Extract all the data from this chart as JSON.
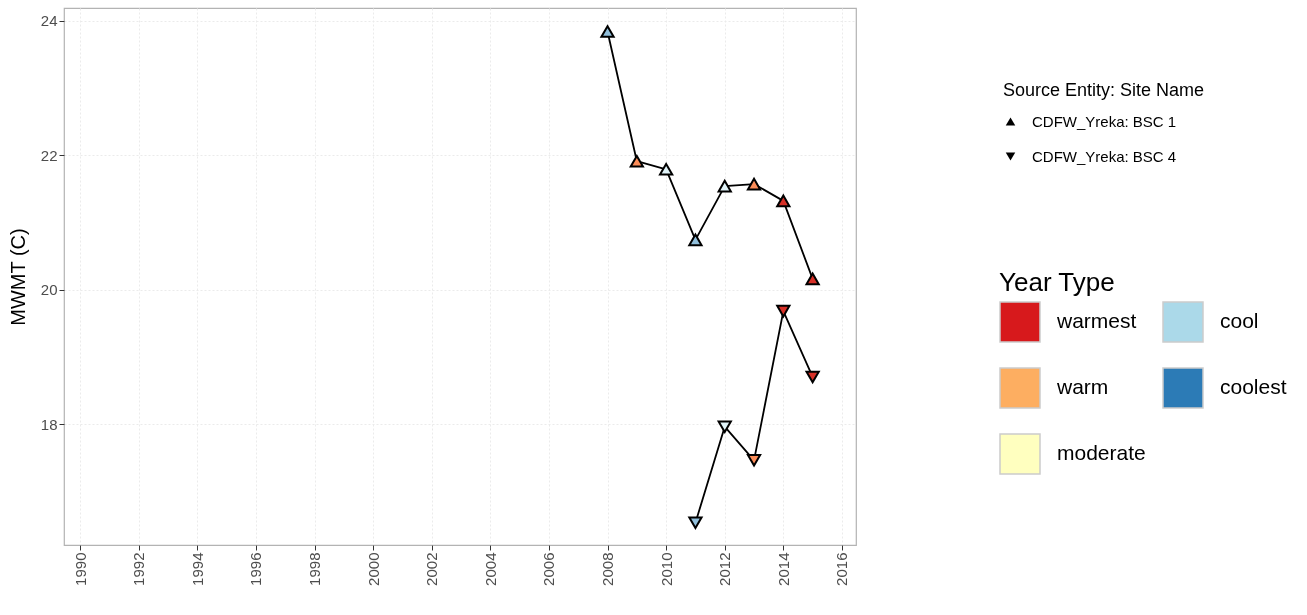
{
  "chart_data": {
    "type": "line",
    "ylabel": "MWMT (C)",
    "legend_title": [
      "Source Entity: Site Name",
      "Year Type"
    ],
    "xlim": [
      1989.45,
      2016.48
    ],
    "xticks": [
      1990,
      1992,
      1994,
      1996,
      1998,
      2000,
      2002,
      2004,
      2006,
      2008,
      2010,
      2012,
      2014,
      2016
    ],
    "ylim": [
      16.2,
      24.19
    ],
    "yticks": [
      18,
      20,
      22,
      24
    ],
    "grid": true,
    "legend": "right",
    "line_style": "solid",
    "series": [
      {
        "name": "CDFW_Yreka: BSC 1",
        "type": "line",
        "color": "#000000",
        "marker": "triangle",
        "x": [
          2008,
          2009,
          2010,
          2011,
          2012,
          2013,
          2014,
          2015
        ],
        "values": [
          23.84,
          21.91,
          21.79,
          20.74,
          21.54,
          21.57,
          21.32,
          20.16
        ],
        "colors": [
          "#91bfdb",
          "#fc8d59",
          "#e0f3f8",
          "#91bfdb",
          "#e0f3f8",
          "#fc8d59",
          "#d73027",
          "#d73027"
        ]
      },
      {
        "name": "CDFW_Yreka: BSC 4",
        "type": "line",
        "color": "#000000",
        "marker": "triangle-down",
        "x": [
          2011,
          2012,
          2013,
          2014,
          2015
        ],
        "values": [
          16.53,
          17.96,
          17.46,
          19.68,
          18.7
        ],
        "colors": [
          "#91bfdb",
          "#e0f3f8",
          "#fc8d59",
          "#d73027",
          "#d73027"
        ]
      },
      {
        "name": "warmest",
        "type": "scatter",
        "color": "#d7191c"
      },
      {
        "name": "warm",
        "type": "scatter",
        "color": "#fdae61"
      },
      {
        "name": "moderate",
        "type": "scatter",
        "color": "#ffffbf"
      },
      {
        "name": "cool",
        "type": "scatter",
        "color": "#abd9e9"
      },
      {
        "name": "coolest",
        "type": "scatter",
        "color": "#2c7bb6"
      }
    ]
  }
}
